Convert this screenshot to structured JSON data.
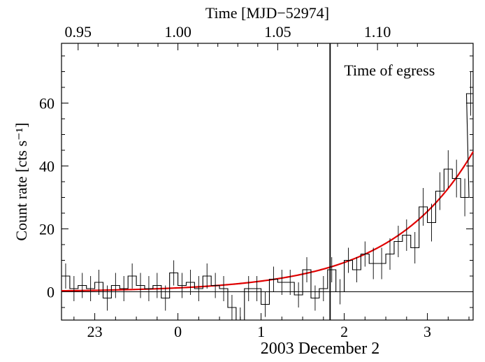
{
  "chart_data": {
    "type": "line",
    "title": "",
    "xlabel_top": "Time [MJD−52974]",
    "xlabel_bottom": "2003 December 2",
    "ylabel": "Count rate [cts s⁻¹]",
    "annotation": "Time of egress",
    "xlim_hours": [
      22.6,
      27.55
    ],
    "ylim": [
      -9,
      79
    ],
    "x_ticks_bottom": [
      {
        "value": 23,
        "label": "23"
      },
      {
        "value": 24,
        "label": "0"
      },
      {
        "value": 25,
        "label": "1"
      },
      {
        "value": 26,
        "label": "2"
      },
      {
        "value": 27,
        "label": "3"
      }
    ],
    "x_ticks_top": [
      {
        "value": 0.95,
        "label": "0.95"
      },
      {
        "value": 1.0,
        "label": "1.00"
      },
      {
        "value": 1.05,
        "label": "1.05"
      },
      {
        "value": 1.1,
        "label": "1.10"
      }
    ],
    "y_ticks": [
      {
        "value": 0,
        "label": "0"
      },
      {
        "value": 20,
        "label": "20"
      },
      {
        "value": 40,
        "label": "40"
      },
      {
        "value": 60,
        "label": "60"
      }
    ],
    "egress_time_hours": 25.83,
    "bin_width_hours": 0.1,
    "series": [
      {
        "name": "",
        "kind": "histogram",
        "color": "#000000",
        "x": [
          22.65,
          22.75,
          22.85,
          22.95,
          23.05,
          23.15,
          23.25,
          23.35,
          23.45,
          23.55,
          23.65,
          23.75,
          23.85,
          23.95,
          24.05,
          24.15,
          24.25,
          24.35,
          24.45,
          24.55,
          24.65,
          24.75,
          24.85,
          24.95,
          25.05,
          25.15,
          25.25,
          25.35,
          25.45,
          25.55,
          25.65,
          25.75,
          25.85,
          25.95,
          26.05,
          26.15,
          26.25,
          26.35,
          26.45,
          26.55,
          26.65,
          26.75,
          26.85,
          26.95,
          27.05,
          27.15,
          27.25,
          27.35,
          27.45,
          27.52
        ],
        "y": [
          5,
          1,
          2,
          1,
          3,
          -2,
          2,
          1,
          5,
          2,
          1,
          2,
          -2,
          6,
          2,
          3,
          1,
          5,
          2,
          1,
          -5,
          -9,
          1,
          1,
          -4,
          4,
          3,
          3,
          -1,
          7,
          -2,
          1,
          7,
          0,
          10,
          7,
          12,
          9,
          9,
          12,
          16,
          18,
          14,
          27,
          22,
          32,
          39,
          36,
          30,
          63
        ],
        "err": [
          4,
          4,
          4,
          4,
          4,
          4,
          4,
          4,
          4,
          4,
          4,
          4,
          4,
          4,
          4,
          4,
          4,
          4,
          4,
          4,
          4,
          4,
          4,
          4,
          4,
          4,
          4,
          4,
          4,
          4,
          4,
          4,
          4,
          4,
          4,
          4,
          4,
          5,
          5,
          5,
          5,
          5,
          5,
          6,
          6,
          6,
          6,
          6,
          6,
          7
        ]
      },
      {
        "name": "",
        "kind": "model",
        "color": "#e00000",
        "amplitude": 0.3,
        "tau_hours": 0.99,
        "t0_hours": 22.6
      }
    ]
  }
}
